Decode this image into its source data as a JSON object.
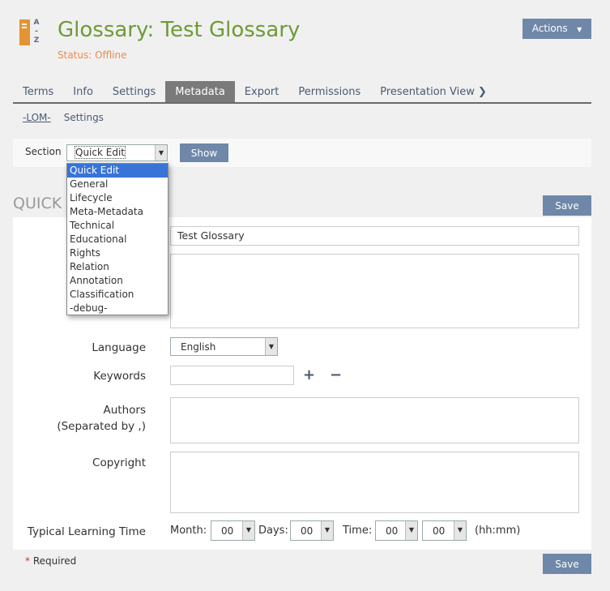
{
  "header": {
    "title": "Glossary: Test Glossary",
    "status": "Status: Offline",
    "icon": "glossary-az-icon",
    "icon_letters": [
      "A",
      "-",
      "Z"
    ],
    "actions_label": "Actions"
  },
  "tabs": [
    {
      "label": "Terms"
    },
    {
      "label": "Info"
    },
    {
      "label": "Settings"
    },
    {
      "label": "Metadata",
      "active": true
    },
    {
      "label": "Export"
    },
    {
      "label": "Permissions"
    },
    {
      "label": "Presentation View"
    }
  ],
  "subtabs": [
    {
      "label": "-LOM-",
      "active": true
    },
    {
      "label": "Settings"
    }
  ],
  "section": {
    "label": "Section",
    "value": "Quick Edit",
    "show_label": "Show",
    "options": [
      "Quick Edit",
      "General",
      "Lifecycle",
      "Meta-Metadata",
      "Technical",
      "Educational",
      "Rights",
      "Relation",
      "Annotation",
      "Classification",
      "-debug-"
    ]
  },
  "form": {
    "heading": "QUICK EDIT",
    "save_label": "Save",
    "title_value": "Test Glossary",
    "language_label": "Language",
    "language_value": "English",
    "keywords_label": "Keywords",
    "keywords_value": "",
    "authors_label": "Authors",
    "authors_sub": "(Separated by ,)",
    "copyright_label": "Copyright",
    "tlt_label": "Typical Learning Time",
    "month_label": "Month:",
    "month_value": "00",
    "days_label": "Days:",
    "days_value": "00",
    "time_label": "Time:",
    "hours_value": "00",
    "minutes_value": "00",
    "time_format": "(hh:mm)",
    "required": "Required",
    "required_mark": "*"
  },
  "colors": {
    "accent": "#6f87a8",
    "title": "#6f9a37",
    "status": "#f08a4b",
    "highlight": "#3874d8"
  }
}
